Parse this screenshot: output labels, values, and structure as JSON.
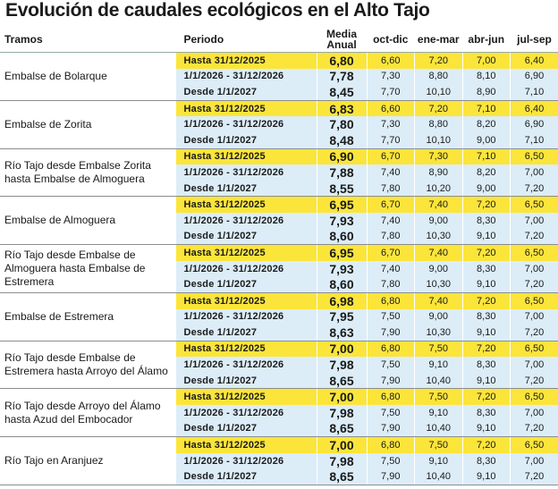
{
  "title": "Evolución de caudales ecológicos en el Alto Tajo",
  "headers": {
    "tramos": "Tramos",
    "periodo": "Periodo",
    "media_1": "Media",
    "media_2": "Anual",
    "m1": "oct-dic",
    "m2": "ene-mar",
    "m3": "abr-jun",
    "m4": "jul-sep"
  },
  "tramos": [
    {
      "name": "Embalse de Bolarque",
      "rows": [
        {
          "periodo": "Hasta 31/12/2025",
          "media": "6,80",
          "m": [
            "6,60",
            "7,20",
            "7,00",
            "6,40"
          ]
        },
        {
          "periodo": "1/1/2026 - 31/12/2026",
          "media": "7,78",
          "m": [
            "7,30",
            "8,80",
            "8,10",
            "6,90"
          ]
        },
        {
          "periodo": "Desde 1/1/2027",
          "media": "8,45",
          "m": [
            "7,70",
            "10,10",
            "8,90",
            "7,10"
          ]
        }
      ]
    },
    {
      "name": "Embalse de Zorita",
      "rows": [
        {
          "periodo": "Hasta 31/12/2025",
          "media": "6,83",
          "m": [
            "6,60",
            "7,20",
            "7,10",
            "6,40"
          ]
        },
        {
          "periodo": "1/1/2026 - 31/12/2026",
          "media": "7,80",
          "m": [
            "7,30",
            "8,80",
            "8,20",
            "6,90"
          ]
        },
        {
          "periodo": "Desde 1/1/2027",
          "media": "8,48",
          "m": [
            "7,70",
            "10,10",
            "9,00",
            "7,10"
          ]
        }
      ]
    },
    {
      "name": "Río Tajo desde  Embalse Zorita hasta Embalse de Almoguera",
      "rows": [
        {
          "periodo": "Hasta 31/12/2025",
          "media": "6,90",
          "m": [
            "6,70",
            "7,30",
            "7,10",
            "6,50"
          ]
        },
        {
          "periodo": "1/1/2026 - 31/12/2026",
          "media": "7,88",
          "m": [
            "7,40",
            "8,90",
            "8,20",
            "7,00"
          ]
        },
        {
          "periodo": "Desde 1/1/2027",
          "media": "8,55",
          "m": [
            "7,80",
            "10,20",
            "9,00",
            "7,20"
          ]
        }
      ]
    },
    {
      "name": "Embalse de Almoguera",
      "rows": [
        {
          "periodo": "Hasta 31/12/2025",
          "media": "6,95",
          "m": [
            "6,70",
            "7,40",
            "7,20",
            "6,50"
          ]
        },
        {
          "periodo": "1/1/2026 - 31/12/2026",
          "media": "7,93",
          "m": [
            "7,40",
            "9,00",
            "8,30",
            "7,00"
          ]
        },
        {
          "periodo": "Desde 1/1/2027",
          "media": "8,60",
          "m": [
            "7,80",
            "10,30",
            "9,10",
            "7,20"
          ]
        }
      ]
    },
    {
      "name": "Río Tajo desde Embalse de Almoguera hasta Embalse de Estremera",
      "rows": [
        {
          "periodo": "Hasta 31/12/2025",
          "media": "6,95",
          "m": [
            "6,70",
            "7,40",
            "7,20",
            "6,50"
          ]
        },
        {
          "periodo": "1/1/2026 - 31/12/2026",
          "media": "7,93",
          "m": [
            "7,40",
            "9,00",
            "8,30",
            "7,00"
          ]
        },
        {
          "periodo": "Desde 1/1/2027",
          "media": "8,60",
          "m": [
            "7,80",
            "10,30",
            "9,10",
            "7,20"
          ]
        }
      ]
    },
    {
      "name": "Embalse de Estremera",
      "rows": [
        {
          "periodo": "Hasta 31/12/2025",
          "media": "6,98",
          "m": [
            "6,80",
            "7,40",
            "7,20",
            "6,50"
          ]
        },
        {
          "periodo": "1/1/2026 - 31/12/2026",
          "media": "7,95",
          "m": [
            "7,50",
            "9,00",
            "8,30",
            "7,00"
          ]
        },
        {
          "periodo": "Desde 1/1/2027",
          "media": "8,63",
          "m": [
            "7,90",
            "10,30",
            "9,10",
            "7,20"
          ]
        }
      ]
    },
    {
      "name": "Río Tajo desde Embalse de Estremera hasta Arroyo del Álamo",
      "rows": [
        {
          "periodo": "Hasta 31/12/2025",
          "media": "7,00",
          "m": [
            "6,80",
            "7,50",
            "7,20",
            "6,50"
          ]
        },
        {
          "periodo": "1/1/2026 - 31/12/2026",
          "media": "7,98",
          "m": [
            "7,50",
            "9,10",
            "8,30",
            "7,00"
          ]
        },
        {
          "periodo": "Desde 1/1/2027",
          "media": "8,65",
          "m": [
            "7,90",
            "10,40",
            "9,10",
            "7,20"
          ]
        }
      ]
    },
    {
      "name": "Río Tajo desde Arroyo del Álamo hasta Azud del Embocador",
      "rows": [
        {
          "periodo": "Hasta 31/12/2025",
          "media": "7,00",
          "m": [
            "6,80",
            "7,50",
            "7,20",
            "6,50"
          ]
        },
        {
          "periodo": "1/1/2026 - 31/12/2026",
          "media": "7,98",
          "m": [
            "7,50",
            "9,10",
            "8,30",
            "7,00"
          ]
        },
        {
          "periodo": "Desde 1/1/2027",
          "media": "8,65",
          "m": [
            "7,90",
            "10,40",
            "9,10",
            "7,20"
          ]
        }
      ]
    },
    {
      "name": "Río Tajo en Aranjuez",
      "rows": [
        {
          "periodo": "Hasta 31/12/2025",
          "media": "7,00",
          "m": [
            "6,80",
            "7,50",
            "7,20",
            "6,50"
          ]
        },
        {
          "periodo": "1/1/2026 - 31/12/2026",
          "media": "7,98",
          "m": [
            "7,50",
            "9,10",
            "8,30",
            "7,00"
          ]
        },
        {
          "periodo": "Desde 1/1/2027",
          "media": "8,65",
          "m": [
            "7,90",
            "10,40",
            "9,10",
            "7,20"
          ]
        }
      ]
    }
  ],
  "colors": {
    "highlight": "#fbe53a",
    "shade": "#dcedf8"
  }
}
